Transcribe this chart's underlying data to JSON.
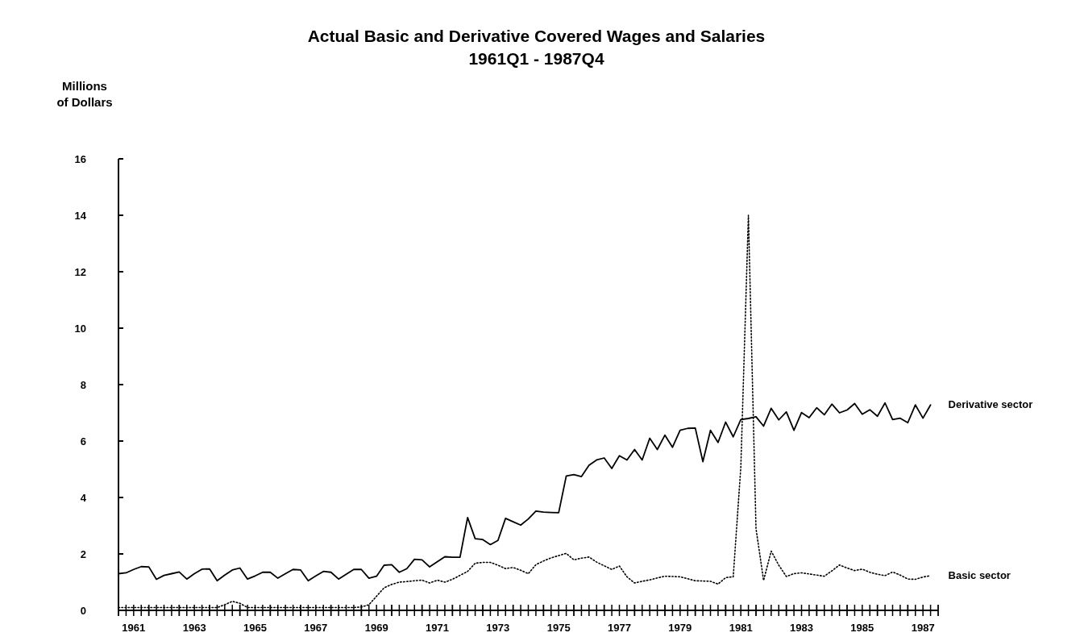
{
  "chart_data": {
    "type": "line",
    "title": "Actual Basic and Derivative Covered Wages and Salaries",
    "subtitle": "1961Q1 - 1987Q4",
    "ylabel": "Millions of Dollars",
    "x": [
      1961,
      1961.25,
      1961.5,
      1961.75,
      1962,
      1962.25,
      1962.5,
      1962.75,
      1963,
      1963.25,
      1963.5,
      1963.75,
      1964,
      1964.25,
      1964.5,
      1964.75,
      1965,
      1965.25,
      1965.5,
      1965.75,
      1966,
      1966.25,
      1966.5,
      1966.75,
      1967,
      1967.25,
      1967.5,
      1967.75,
      1968,
      1968.25,
      1968.5,
      1968.75,
      1969,
      1969.25,
      1969.5,
      1969.75,
      1970,
      1970.25,
      1970.5,
      1970.75,
      1971,
      1971.25,
      1971.5,
      1971.75,
      1972,
      1972.25,
      1972.5,
      1972.75,
      1973,
      1973.25,
      1973.5,
      1973.75,
      1974,
      1974.25,
      1974.5,
      1974.75,
      1975,
      1975.25,
      1975.5,
      1975.75,
      1976,
      1976.25,
      1976.5,
      1976.75,
      1977,
      1977.25,
      1977.5,
      1977.75,
      1978,
      1978.25,
      1978.5,
      1978.75,
      1979,
      1979.25,
      1979.5,
      1979.75,
      1980,
      1980.25,
      1980.5,
      1980.75,
      1981,
      1981.25,
      1981.5,
      1981.75,
      1982,
      1982.25,
      1982.5,
      1982.75,
      1983,
      1983.25,
      1983.5,
      1983.75,
      1984,
      1984.25,
      1984.5,
      1984.75,
      1985,
      1985.25,
      1985.5,
      1985.75,
      1986,
      1986.25,
      1986.5,
      1986.75,
      1987,
      1987.25,
      1987.5,
      1987.75
    ],
    "series": [
      {
        "name": "Derivative sector",
        "color": "#000000",
        "line_style": "solid",
        "values": [
          1.3,
          1.33,
          1.45,
          1.55,
          1.54,
          1.1,
          1.24,
          1.3,
          1.36,
          1.11,
          1.3,
          1.46,
          1.47,
          1.05,
          1.25,
          1.43,
          1.5,
          1.11,
          1.22,
          1.35,
          1.35,
          1.14,
          1.3,
          1.45,
          1.43,
          1.05,
          1.22,
          1.38,
          1.35,
          1.11,
          1.28,
          1.45,
          1.45,
          1.14,
          1.21,
          1.6,
          1.62,
          1.35,
          1.48,
          1.81,
          1.79,
          1.54,
          1.72,
          1.9,
          1.88,
          1.88,
          3.29,
          2.54,
          2.51,
          2.33,
          2.48,
          3.26,
          3.14,
          3.02,
          3.24,
          3.52,
          3.48,
          3.47,
          3.46,
          4.76,
          4.81,
          4.74,
          5.14,
          5.33,
          5.4,
          5.03,
          5.48,
          5.33,
          5.7,
          5.33,
          6.1,
          5.7,
          6.21,
          5.78,
          6.38,
          6.45,
          6.46,
          5.27,
          6.38,
          5.95,
          6.67,
          6.15,
          6.76,
          6.8,
          6.86,
          6.53,
          7.16,
          6.75,
          7.03,
          6.38,
          7.01,
          6.83,
          7.18,
          6.93,
          7.31,
          7.0,
          7.1,
          7.33,
          6.95,
          7.11,
          6.88,
          7.35,
          6.76,
          6.81,
          6.65,
          7.28,
          6.81,
          7.28
        ]
      },
      {
        "name": "Basic sector",
        "color": "#000000",
        "line_style": "dotted",
        "values": [
          0.1,
          0.1,
          0.1,
          0.1,
          0.1,
          0.1,
          0.1,
          0.1,
          0.1,
          0.1,
          0.1,
          0.1,
          0.1,
          0.1,
          0.2,
          0.32,
          0.25,
          0.1,
          0.1,
          0.1,
          0.1,
          0.1,
          0.1,
          0.1,
          0.1,
          0.1,
          0.1,
          0.1,
          0.1,
          0.1,
          0.1,
          0.1,
          0.12,
          0.2,
          0.5,
          0.8,
          0.92,
          1.0,
          1.02,
          1.05,
          1.07,
          0.97,
          1.07,
          1.0,
          1.1,
          1.24,
          1.38,
          1.67,
          1.7,
          1.7,
          1.6,
          1.48,
          1.52,
          1.42,
          1.3,
          1.62,
          1.75,
          1.86,
          1.94,
          2.02,
          1.79,
          1.85,
          1.89,
          1.71,
          1.58,
          1.45,
          1.57,
          1.19,
          0.97,
          1.03,
          1.08,
          1.15,
          1.21,
          1.2,
          1.19,
          1.12,
          1.05,
          1.04,
          1.03,
          0.93,
          1.16,
          1.19,
          5.07,
          14.0,
          2.9,
          1.06,
          2.1,
          1.6,
          1.2,
          1.3,
          1.33,
          1.29,
          1.25,
          1.21,
          1.4,
          1.61,
          1.5,
          1.41,
          1.46,
          1.35,
          1.28,
          1.23,
          1.36,
          1.25,
          1.11,
          1.1,
          1.18,
          1.23
        ]
      }
    ],
    "xlim": [
      1961,
      1988
    ],
    "xticks": [
      {
        "value": 1961,
        "label": null
      },
      {
        "value": 1961.25,
        "label": null
      },
      {
        "value": 1961.5,
        "label": null
      },
      {
        "value": 1961.75,
        "label": null
      },
      {
        "value": 1962,
        "label": null
      },
      {
        "value": 1962.25,
        "label": null
      },
      {
        "value": 1962.5,
        "label": null
      },
      {
        "value": 1962.75,
        "label": null
      },
      {
        "value": 1963,
        "label": null
      },
      {
        "value": 1963.25,
        "label": null
      },
      {
        "value": 1963.5,
        "label": null
      },
      {
        "value": 1963.75,
        "label": null
      },
      {
        "value": 1964,
        "label": null
      },
      {
        "value": 1964.25,
        "label": null
      },
      {
        "value": 1964.5,
        "label": null
      },
      {
        "value": 1964.75,
        "label": null
      },
      {
        "value": 1965,
        "label": null
      },
      {
        "value": 1965.25,
        "label": null
      },
      {
        "value": 1965.5,
        "label": null
      },
      {
        "value": 1965.75,
        "label": null
      },
      {
        "value": 1966,
        "label": null
      },
      {
        "value": 1966.25,
        "label": null
      },
      {
        "value": 1966.5,
        "label": null
      },
      {
        "value": 1966.75,
        "label": null
      },
      {
        "value": 1967,
        "label": null
      },
      {
        "value": 1967.25,
        "label": null
      },
      {
        "value": 1967.5,
        "label": null
      },
      {
        "value": 1967.75,
        "label": null
      },
      {
        "value": 1968,
        "label": null
      },
      {
        "value": 1968.25,
        "label": null
      },
      {
        "value": 1968.5,
        "label": null
      },
      {
        "value": 1968.75,
        "label": null
      },
      {
        "value": 1969,
        "label": null
      },
      {
        "value": 1969.25,
        "label": null
      },
      {
        "value": 1969.5,
        "label": null
      },
      {
        "value": 1969.75,
        "label": null
      },
      {
        "value": 1970,
        "label": null
      },
      {
        "value": 1970.25,
        "label": null
      },
      {
        "value": 1970.5,
        "label": null
      },
      {
        "value": 1970.75,
        "label": null
      },
      {
        "value": 1971,
        "label": null
      },
      {
        "value": 1971.25,
        "label": null
      },
      {
        "value": 1971.5,
        "label": null
      },
      {
        "value": 1971.75,
        "label": null
      },
      {
        "value": 1972,
        "label": null
      },
      {
        "value": 1972.25,
        "label": null
      },
      {
        "value": 1972.5,
        "label": null
      },
      {
        "value": 1972.75,
        "label": null
      },
      {
        "value": 1973,
        "label": null
      },
      {
        "value": 1973.25,
        "label": null
      },
      {
        "value": 1973.5,
        "label": null
      },
      {
        "value": 1973.75,
        "label": null
      },
      {
        "value": 1974,
        "label": null
      },
      {
        "value": 1974.25,
        "label": null
      },
      {
        "value": 1974.5,
        "label": null
      },
      {
        "value": 1974.75,
        "label": null
      },
      {
        "value": 1975,
        "label": null
      },
      {
        "value": 1975.25,
        "label": null
      },
      {
        "value": 1975.5,
        "label": null
      },
      {
        "value": 1975.75,
        "label": null
      },
      {
        "value": 1976,
        "label": null
      },
      {
        "value": 1976.25,
        "label": null
      },
      {
        "value": 1976.5,
        "label": null
      },
      {
        "value": 1976.75,
        "label": null
      },
      {
        "value": 1977,
        "label": null
      },
      {
        "value": 1977.25,
        "label": null
      },
      {
        "value": 1977.5,
        "label": null
      },
      {
        "value": 1977.75,
        "label": null
      },
      {
        "value": 1978,
        "label": null
      },
      {
        "value": 1978.25,
        "label": null
      },
      {
        "value": 1978.5,
        "label": null
      },
      {
        "value": 1978.75,
        "label": null
      },
      {
        "value": 1979,
        "label": null
      },
      {
        "value": 1979.25,
        "label": null
      },
      {
        "value": 1979.5,
        "label": null
      },
      {
        "value": 1979.75,
        "label": null
      },
      {
        "value": 1980,
        "label": null
      },
      {
        "value": 1980.25,
        "label": null
      },
      {
        "value": 1980.5,
        "label": null
      },
      {
        "value": 1980.75,
        "label": null
      },
      {
        "value": 1981,
        "label": null
      },
      {
        "value": 1981.25,
        "label": null
      },
      {
        "value": 1981.5,
        "label": null
      },
      {
        "value": 1981.75,
        "label": null
      },
      {
        "value": 1982,
        "label": null
      },
      {
        "value": 1982.25,
        "label": null
      },
      {
        "value": 1982.5,
        "label": null
      },
      {
        "value": 1982.75,
        "label": null
      },
      {
        "value": 1983,
        "label": null
      },
      {
        "value": 1983.25,
        "label": null
      },
      {
        "value": 1983.5,
        "label": null
      },
      {
        "value": 1983.75,
        "label": null
      },
      {
        "value": 1984,
        "label": null
      },
      {
        "value": 1984.25,
        "label": null
      },
      {
        "value": 1984.5,
        "label": null
      },
      {
        "value": 1984.75,
        "label": null
      },
      {
        "value": 1985,
        "label": null
      },
      {
        "value": 1985.25,
        "label": null
      },
      {
        "value": 1985.5,
        "label": null
      },
      {
        "value": 1985.75,
        "label": null
      },
      {
        "value": 1986,
        "label": null
      },
      {
        "value": 1986.25,
        "label": null
      },
      {
        "value": 1986.5,
        "label": null
      },
      {
        "value": 1986.75,
        "label": null
      },
      {
        "value": 1987,
        "label": null
      },
      {
        "value": 1987.25,
        "label": null
      },
      {
        "value": 1987.5,
        "label": null
      },
      {
        "value": 1987.75,
        "label": null
      },
      {
        "value": 1988,
        "label": null
      },
      {
        "value": 1961.5,
        "label": "1961"
      },
      {
        "value": 1963.5,
        "label": "1963"
      },
      {
        "value": 1965.5,
        "label": "1965"
      },
      {
        "value": 1967.5,
        "label": "1967"
      },
      {
        "value": 1969.5,
        "label": "1969"
      },
      {
        "value": 1971.5,
        "label": "1971"
      },
      {
        "value": 1973.5,
        "label": "1973"
      },
      {
        "value": 1975.5,
        "label": "1975"
      },
      {
        "value": 1977.5,
        "label": "1977"
      },
      {
        "value": 1979.5,
        "label": "1979"
      },
      {
        "value": 1981.5,
        "label": "1981"
      },
      {
        "value": 1983.5,
        "label": "1983"
      },
      {
        "value": 1985.5,
        "label": "1985"
      },
      {
        "value": 1987.5,
        "label": "1987"
      }
    ],
    "ylim": [
      0,
      16
    ],
    "yticks": [
      0,
      2,
      4,
      6,
      8,
      10,
      12,
      14,
      16
    ]
  }
}
